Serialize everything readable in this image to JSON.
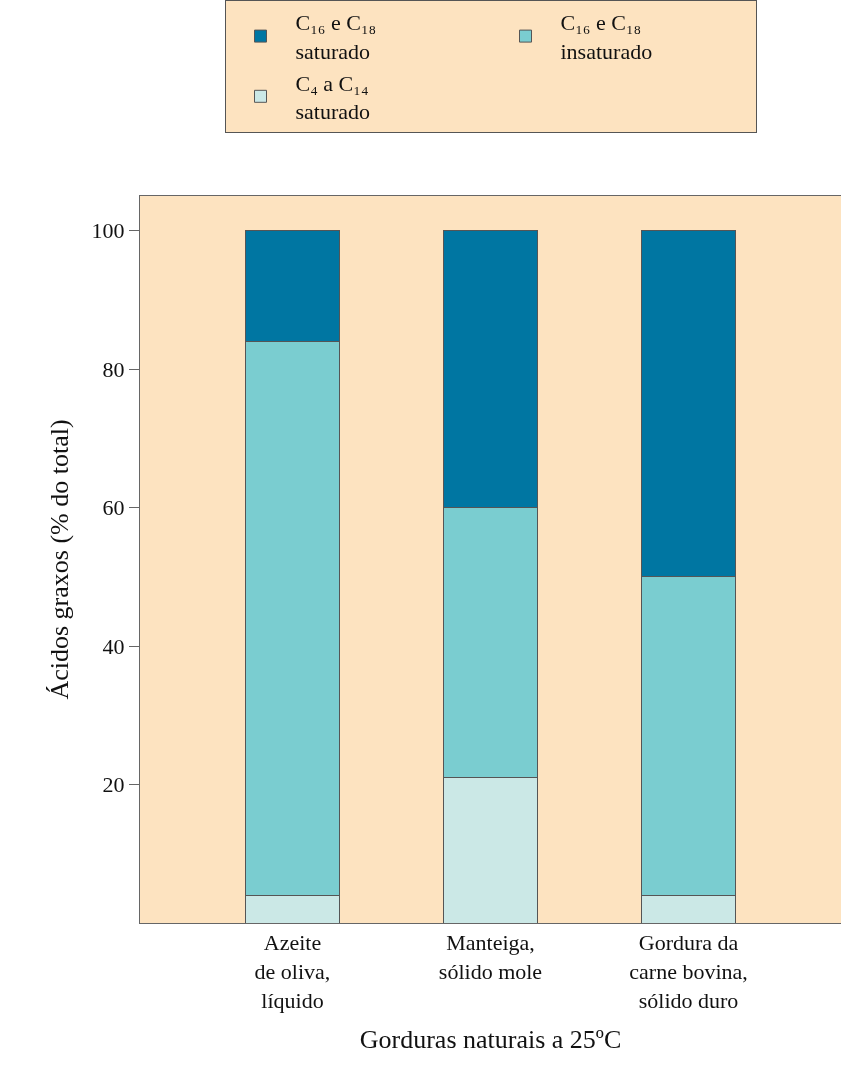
{
  "chart_data": {
    "type": "bar",
    "stacked": true,
    "xlabel": "Gorduras naturais a 25ºC",
    "ylabel": "Ácidos graxos (% do total)",
    "categories": [
      "Azeite\nde oliva,\nlíquido",
      "Manteiga,\nsólido mole",
      "Gordura da\ncarne bovina,\nsólido duro"
    ],
    "series": [
      {
        "name": "C₄ a C₁₄\nsaturado",
        "color": "#cbe8e6",
        "values": [
          4,
          21,
          4
        ]
      },
      {
        "name": "C₁₆ e C₁₈\ninsaturado",
        "color": "#7acdd0",
        "values": [
          80,
          39,
          46
        ]
      },
      {
        "name": "C₁₆ e C₁₈\nsaturado",
        "color": "#0076a2",
        "values": [
          16,
          40,
          50
        ]
      }
    ],
    "ylim": [
      0,
      105
    ],
    "yticks": [
      20,
      40,
      60,
      80,
      100
    ],
    "grid": false,
    "legend": "top"
  }
}
